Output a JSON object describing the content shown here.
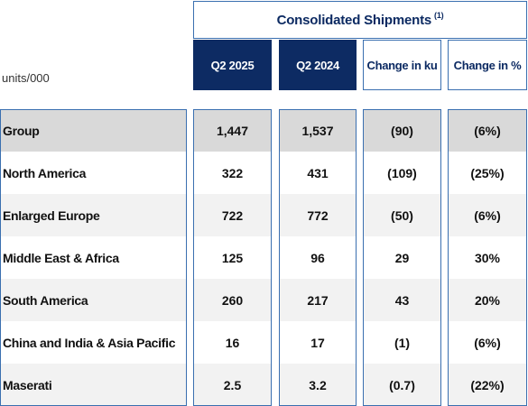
{
  "title": "Consolidated Shipments",
  "title_note": "(1)",
  "units_label": "units/000",
  "columns": [
    "Q2 2025",
    "Q2 2024",
    "Change in ku",
    "Change in %"
  ],
  "colors": {
    "navy": "#0d2b63",
    "border": "#3a6fb0",
    "group_row": "#d9d9d9",
    "alt_row": "#f2f2f2"
  },
  "rows": [
    {
      "label": "Group",
      "values": [
        "1,447",
        "1,537",
        "(90)",
        "(6%)"
      ]
    },
    {
      "label": "North America",
      "values": [
        "322",
        "431",
        "(109)",
        "(25%)"
      ]
    },
    {
      "label": "Enlarged Europe",
      "values": [
        "722",
        "772",
        "(50)",
        "(6%)"
      ]
    },
    {
      "label": "Middle East & Africa",
      "values": [
        "125",
        "96",
        "29",
        "30%"
      ]
    },
    {
      "label": "South America",
      "values": [
        "260",
        "217",
        "43",
        "20%"
      ]
    },
    {
      "label": "China and India & Asia Pacific",
      "values": [
        "16",
        "17",
        "(1)",
        "(6%)"
      ]
    },
    {
      "label": "Maserati",
      "values": [
        "2.5",
        "3.2",
        "(0.7)",
        "(22%)"
      ]
    }
  ]
}
